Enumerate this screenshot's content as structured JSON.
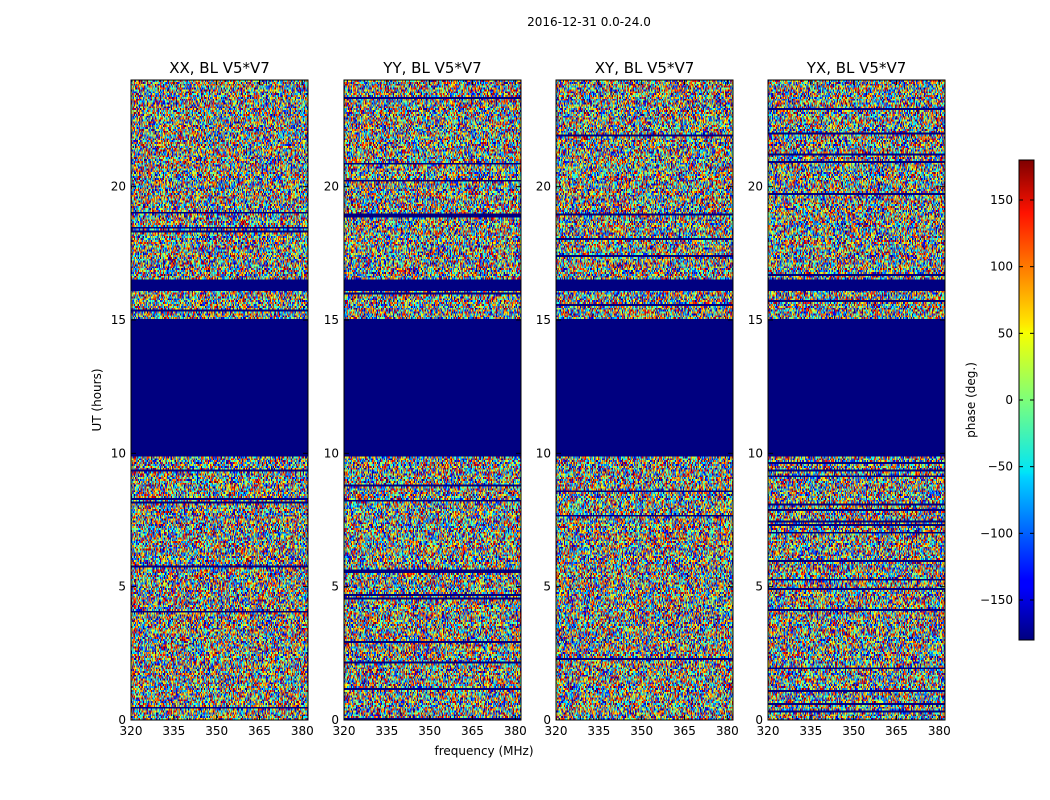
{
  "chart_data": {
    "type": "heatmap",
    "suptitle": "2016-12-31 0.0-24.0",
    "xlabel": "frequency (MHz)",
    "ylabel": "UT (hours)",
    "xlim": [
      320,
      382
    ],
    "ylim": [
      0,
      24
    ],
    "xticks": [
      "320",
      "335",
      "350",
      "365",
      "380"
    ],
    "yticks": [
      "0",
      "5",
      "10",
      "15",
      "20"
    ],
    "colorbar": {
      "label": "phase (deg.)",
      "range": [
        -180,
        180
      ],
      "ticks": [
        "−150",
        "−100",
        "−50",
        "0",
        "50",
        "100",
        "150"
      ],
      "colormap": "jet"
    },
    "panels": [
      {
        "title": "XX, BL V5*V7",
        "flagged_hours": [
          [
            9.9,
            15.0
          ],
          [
            16.1,
            16.5
          ]
        ]
      },
      {
        "title": "YY, BL V5*V7",
        "flagged_hours": [
          [
            9.9,
            15.0
          ],
          [
            16.1,
            16.5
          ]
        ]
      },
      {
        "title": "XY, BL V5*V7",
        "flagged_hours": [
          [
            9.9,
            15.0
          ],
          [
            16.1,
            16.5
          ]
        ]
      },
      {
        "title": "YX, BL V5*V7",
        "flagged_hours": [
          [
            9.9,
            15.0
          ],
          [
            16.1,
            16.5
          ]
        ]
      }
    ]
  }
}
